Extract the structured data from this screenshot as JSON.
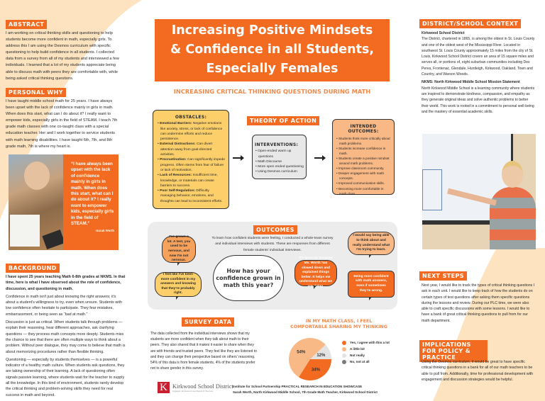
{
  "colors": {
    "accent": "#f26b21",
    "peach": "#fde3bf",
    "obstacles": "#fccf6a",
    "interventions": "#e8e8e8",
    "outcomes": "#f8b986"
  },
  "title": "Increasing Positive Mindsets & Confidence in all Students, Especially Females",
  "title_lines": [
    "Increasing Positive Mindsets",
    "& Confidence in all Students,",
    "Especially Females"
  ],
  "subtitle": "INCREASING CRITICAL THINKING QUESTIONS DURING MATH",
  "abstract": {
    "heading": "ABSTRACT",
    "text": "I am working on critical thinking skills and questioning to help students become more confident in math, especially girls. To address this I am using the Desmos curriculum with specific questioning to help build confidence in all students. I collected data from a survey from all of my students and interviewed a few individuals. I learned that a lot of my students appreciate being able to discuss math with peers they are comfortable with, while being asked critical thinking questions."
  },
  "personal_why": {
    "heading": "PERSONAL WHY",
    "text": "I have taught middle school math for 25 years. I have always been upset with the lack of confidence mainly in girls in math. When does this start, what can I do about it? I really want to empower kids, especially girls in the field of STEAM. I teach 7th grade math classes with one co-taught class with a special education teacher. Her and I work together to service students with math learning disabilities. I have taught 6th, 7th, and 8th grade math, 7th is where my heart is.",
    "quote": "“I have always been upset with the lack of confidence mainly in girls in math. When does this start, what can I do about it? I really want to empower kids, especially girls in the field of STEAM.”",
    "quote_author": "-Sarah Worth"
  },
  "background": {
    "heading": "BACKGROUND",
    "paragraphs": [
      "I have spent 25 years teaching Math 6-8th grades at NKMS. In that time, here is what I have observed about the role of confidence, discussion, and questioning in math.",
      "Confidence in math isn't just about knowing the right answers; it's about a student's willingness to try, even when unsure. Students with low confidence often hesitate to participate. They fear mistakes, embarrassment, or being seen as “bad at math.”",
      "Discussion is just as critical. When students talk through problems — explain their reasoning, hear different approaches, ask clarifying questions — they process math concepts more deeply. Students miss the chance to see that there are often multiple ways to think about a problem. Without peer dialogue, they may come to believe that math is about memorizing procedures rather than flexible thinking.",
      "Questioning — especially by students themselves — is a powerful indicator of a healthy math culture. When students ask questions, they are taking ownership of their learning. A lack of questioning often signals passive learning, where students wait for the teacher to supply all the knowledge. In this kind of environment, students rarely develop the critical thinking and problem-solving skills they need for real success in math and beyond."
    ]
  },
  "obstacles": {
    "heading": "OBSTACLES:",
    "items": [
      {
        "term": "Emotional Barriers:",
        "text": " Negative emotions like anxiety, stress, or lack of confidence can undermine efforts and reduce persistence."
      },
      {
        "term": "External Distractions:",
        "text": " Can divert attention away from goal-directed activities."
      },
      {
        "term": "Procrastination:",
        "text": " Can significantly impede progress. Often stems from fear of failure or lack of motivation."
      },
      {
        "term": "Lack of Resources:",
        "text": " Insufficient time, knowledge, or materials can create barriers to success."
      },
      {
        "term": "Poor Self-Regulation:",
        "text": " Difficulty managing behavior, emotions, and thoughts can lead to inconsistent efforts."
      }
    ]
  },
  "theory_of_action": {
    "heading": "THEORY OF ACTION",
    "interventions": {
      "heading": "INTERVENTIONS:",
      "items": [
        "Open-ended warm up questions",
        "Math Discourse",
        "More open ended questioning",
        "Using Desmos curriculum"
      ]
    },
    "intended_outcomes": {
      "heading": "INTENDED OUTCOMES:",
      "items": [
        "Students think more critically about math problems.",
        "Students increase confidence in math.",
        "Students create a positive mindset around math problems.",
        "Improve classroom community.",
        "Deeper engagement with math concepts.",
        "Improved communication skills.",
        "Becoming more comfortable in math class."
      ]
    }
  },
  "outcomes": {
    "heading": "OUTCOMES",
    "intro": "To learn how confident students were feeling, I conducted a whole-team survey and individual interviews with students. These are responses from different female students' individual interviews.",
    "question": "How has your confidence grown in math this year?",
    "quotes": [
      "I've grown a lot. A test, you used to be nervous, and now I'm not nervous.",
      "I feel like I've been more confident in my answers and knowing that they're probably right.",
      "It's gone up because Ms. Worth has slowed down and explained things better. It helps me understand what we are doing.",
      "I would say being able to think about and really understand what I'm trying to learn.",
      "Being more confident with math answers, even if sometimes they're wrong."
    ]
  },
  "survey": {
    "heading": "SURVEY DATA",
    "text": "The data collected from the individual interviews shows that my students are more confident when they talk about math to their peers. They also shared that it makes it easier to share when they are with friends and trusted peers. They feel like they are listened to and they can change their perspective based on others' reasoning. 54% of this data is from female students, 4% of the students prefer not to share gender in this survey."
  },
  "chart_data": {
    "type": "pie",
    "title": "IN MY MATH CLASS, I FEEL COMFORTABLE SHARING MY THINKING",
    "categories": [
      "Yes, I agree with this a lot",
      "A little bit",
      "Not really",
      "No, not at all"
    ],
    "values": [
      34,
      54,
      12,
      0
    ],
    "labels": [
      "34%",
      "54%",
      "12%",
      ""
    ],
    "colors": [
      "#f26b21",
      "#f8b986",
      "#e3e3e3",
      "#7a7a7a"
    ],
    "legend": "right"
  },
  "district": {
    "heading": "DISTRICT/SCHOOL CONTEXT",
    "sub1": "Kirkwood School District",
    "text1": "The District, chartered in 1865, is among the oldest in St. Louis County and one of the oldest west of the Mississippi River. Located in southwest St. Louis County approximately 15 miles from the city of St. Louis, Kirkwood School District covers an area of 15 square miles and serves all, or portions of, eight suburban communities including Des Peres, Frontenac, Glendale, Huntleigh, Kirkwood, Oakland, Town and Country, and Warson Woods.",
    "sub2": "NKMS: North Kirkwood Middle School Mission Statement",
    "text2": "North Kirkwood Middle School is a learning community where students are inspired to demonstrate kindness, compassion, and empathy as they generate original ideas and solve authentic problems to better their world. This work is rooted in a commitment to personal well-being and the mastery of essential academic skills."
  },
  "next_steps": {
    "heading": "NEXT STEPS",
    "text": "Next year, I would like to track the types of critical thinking questions I ask in each unit. I would like to keep track of how the students do on certain types of test questions after asking them specific questions during the lessons and review. During our PLC time, we were also able to craft specific discussions with some lessons. I would like to have a bank of great critical thinking questions to pull from for our math department."
  },
  "implications": {
    "heading": "IMPLICATIONS FOR POLICY & PRACTICE",
    "text": "Using the Desmos curriculum, it would be great to have specific critical thinking questions in a bank for all of our math teachers to be able to pull from. Additionally, time for professional development with engagement and discussion strategies would be helpful."
  },
  "footer": {
    "logo_name": "Kirkwood School District",
    "logo_tagline": "Engaged, Empowered and Ready for Success",
    "logo_letter": "K",
    "line1": "Institute for School Partnership PRACTICAL RESEARCH IN EDUCATION SHOWCASE",
    "line2": "Sarah Worth, North Kirkwood Middle School, 7th Grade Math Teacher, Kirkwood School District"
  }
}
